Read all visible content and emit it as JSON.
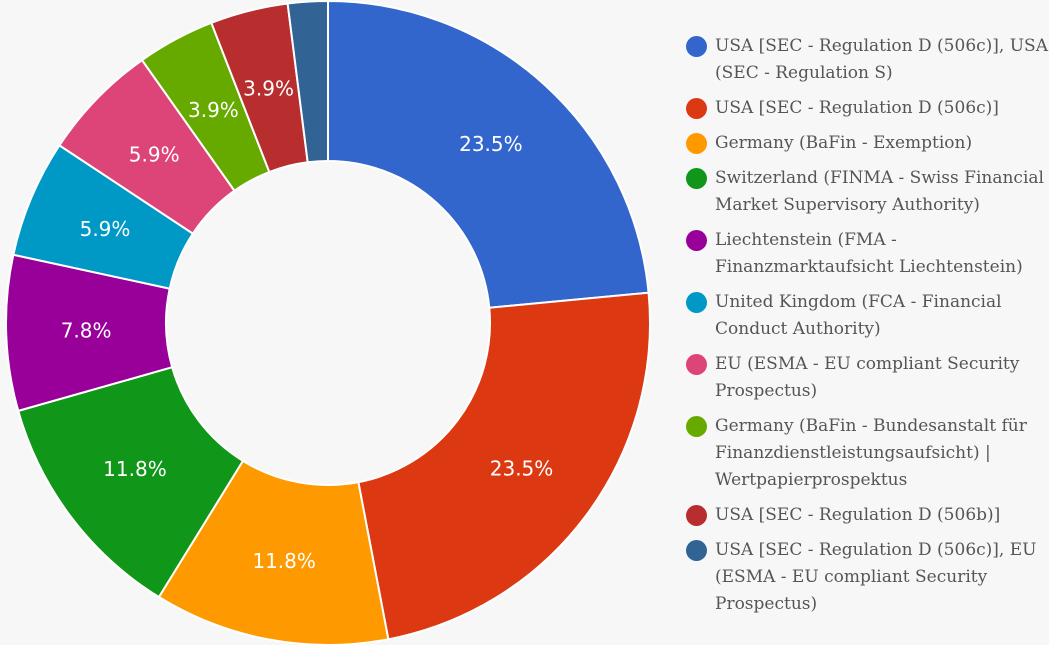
{
  "chart_data": {
    "type": "pie",
    "variant": "donut",
    "title": "",
    "legend_position": "right",
    "slices": [
      {
        "label": "USA [SEC - Regulation D (506c)], USA (SEC - Regulation S)",
        "value": 23.5,
        "display": "23.5%",
        "color": "#3366cc"
      },
      {
        "label": "USA [SEC - Regulation D (506c)]",
        "value": 23.5,
        "display": "23.5%",
        "color": "#dc3912"
      },
      {
        "label": "Germany (BaFin - Exemption)",
        "value": 11.8,
        "display": "11.8%",
        "color": "#ff9900"
      },
      {
        "label": "Switzerland (FINMA - Swiss Financial Market Supervisory Authority)",
        "value": 11.8,
        "display": "11.8%",
        "color": "#109618"
      },
      {
        "label": "Liechtenstein (FMA - Finanzmarktaufsicht Liechtenstein)",
        "value": 7.8,
        "display": "7.8%",
        "color": "#990099"
      },
      {
        "label": "United Kingdom (FCA - Financial Conduct Authority)",
        "value": 5.9,
        "display": "5.9%",
        "color": "#0099c6"
      },
      {
        "label": "EU (ESMA - EU compliant Security Prospectus)",
        "value": 5.9,
        "display": "5.9%",
        "color": "#dd4477"
      },
      {
        "label": "Germany (BaFin - Bundesanstalt für Finanzdienstleistungsaufsicht) | Wertpapierprospektus",
        "value": 3.9,
        "display": "3.9%",
        "color": "#66aa00"
      },
      {
        "label": "USA [SEC - Regulation D (506b)]",
        "value": 3.9,
        "display": "3.9%",
        "color": "#b82e2e"
      },
      {
        "label": "USA [SEC - Regulation D (506c)], EU (ESMA - EU compliant Security Prospectus)",
        "value": 2.0,
        "display": "",
        "color": "#316395"
      }
    ]
  }
}
